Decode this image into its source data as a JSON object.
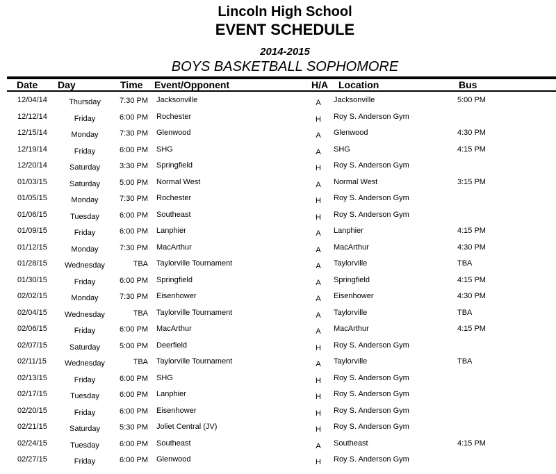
{
  "header": {
    "school": "Lincoln High School",
    "title": "EVENT SCHEDULE",
    "season": "2014-2015",
    "team": "BOYS BASKETBALL SOPHOMORE"
  },
  "columns": {
    "date": "Date",
    "day": "Day",
    "time": "Time",
    "event": "Event/Opponent",
    "ha": "H/A",
    "location": "Location",
    "bus": "Bus"
  },
  "rows": [
    {
      "date": "12/04/14",
      "day": "Thursday",
      "time": "7:30 PM",
      "event": "Jacksonville",
      "ha": "A",
      "location": "Jacksonville",
      "bus": "5:00 PM"
    },
    {
      "date": "12/12/14",
      "day": "Friday",
      "time": "6:00 PM",
      "event": "Rochester",
      "ha": "H",
      "location": "Roy S. Anderson Gym",
      "bus": ""
    },
    {
      "date": "12/15/14",
      "day": "Monday",
      "time": "7:30 PM",
      "event": "Glenwood",
      "ha": "A",
      "location": "Glenwood",
      "bus": "4:30 PM"
    },
    {
      "date": "12/19/14",
      "day": "Friday",
      "time": "6:00 PM",
      "event": "SHG",
      "ha": "A",
      "location": "SHG",
      "bus": "4:15 PM"
    },
    {
      "date": "12/20/14",
      "day": "Saturday",
      "time": "3:30 PM",
      "event": "Springfield",
      "ha": "H",
      "location": "Roy S. Anderson Gym",
      "bus": ""
    },
    {
      "date": "01/03/15",
      "day": "Saturday",
      "time": "5:00 PM",
      "event": "Normal West",
      "ha": "A",
      "location": "Normal West",
      "bus": "3:15 PM"
    },
    {
      "date": "01/05/15",
      "day": "Monday",
      "time": "7:30 PM",
      "event": "Rochester",
      "ha": "H",
      "location": "Roy S. Anderson Gym",
      "bus": ""
    },
    {
      "date": "01/06/15",
      "day": "Tuesday",
      "time": "6:00 PM",
      "event": "Southeast",
      "ha": "H",
      "location": "Roy S. Anderson Gym",
      "bus": ""
    },
    {
      "date": "01/09/15",
      "day": "Friday",
      "time": "6:00 PM",
      "event": "Lanphier",
      "ha": "A",
      "location": "Lanphier",
      "bus": "4:15 PM"
    },
    {
      "date": "01/12/15",
      "day": "Monday",
      "time": "7:30 PM",
      "event": "MacArthur",
      "ha": "A",
      "location": "MacArthur",
      "bus": "4:30 PM"
    },
    {
      "date": "01/28/15",
      "day": "Wednesday",
      "time": "TBA",
      "event": "Taylorville Tournament",
      "ha": "A",
      "location": "Taylorville",
      "bus": "TBA"
    },
    {
      "date": "01/30/15",
      "day": "Friday",
      "time": "6:00 PM",
      "event": "Springfield",
      "ha": "A",
      "location": "Springfield",
      "bus": "4:15 PM"
    },
    {
      "date": "02/02/15",
      "day": "Monday",
      "time": "7:30 PM",
      "event": "Eisenhower",
      "ha": "A",
      "location": "Eisenhower",
      "bus": "4:30 PM"
    },
    {
      "date": "02/04/15",
      "day": "Wednesday",
      "time": "TBA",
      "event": "Taylorville Tournament",
      "ha": "A",
      "location": "Taylorville",
      "bus": "TBA"
    },
    {
      "date": "02/06/15",
      "day": "Friday",
      "time": "6:00 PM",
      "event": "MacArthur",
      "ha": "A",
      "location": "MacArthur",
      "bus": "4:15 PM"
    },
    {
      "date": "02/07/15",
      "day": "Saturday",
      "time": "5:00 PM",
      "event": "Deerfield",
      "ha": "H",
      "location": "Roy S. Anderson Gym",
      "bus": ""
    },
    {
      "date": "02/11/15",
      "day": "Wednesday",
      "time": "TBA",
      "event": "Taylorville Tournament",
      "ha": "A",
      "location": "Taylorville",
      "bus": "TBA"
    },
    {
      "date": "02/13/15",
      "day": "Friday",
      "time": "6:00 PM",
      "event": "SHG",
      "ha": "H",
      "location": "Roy S. Anderson Gym",
      "bus": ""
    },
    {
      "date": "02/17/15",
      "day": "Tuesday",
      "time": "6:00 PM",
      "event": "Lanphier",
      "ha": "H",
      "location": "Roy S. Anderson Gym",
      "bus": ""
    },
    {
      "date": "02/20/15",
      "day": "Friday",
      "time": "6:00 PM",
      "event": "Eisenhower",
      "ha": "H",
      "location": "Roy S. Anderson Gym",
      "bus": ""
    },
    {
      "date": "02/21/15",
      "day": "Saturday",
      "time": "5:30 PM",
      "event": "Joliet Central (JV)",
      "ha": "H",
      "location": "Roy S. Anderson Gym",
      "bus": ""
    },
    {
      "date": "02/24/15",
      "day": "Tuesday",
      "time": "6:00 PM",
      "event": "Southeast",
      "ha": "A",
      "location": "Southeast",
      "bus": "4:15 PM"
    },
    {
      "date": "02/27/15",
      "day": "Friday",
      "time": "6:00 PM",
      "event": "Glenwood",
      "ha": "H",
      "location": "Roy S. Anderson Gym",
      "bus": ""
    }
  ]
}
